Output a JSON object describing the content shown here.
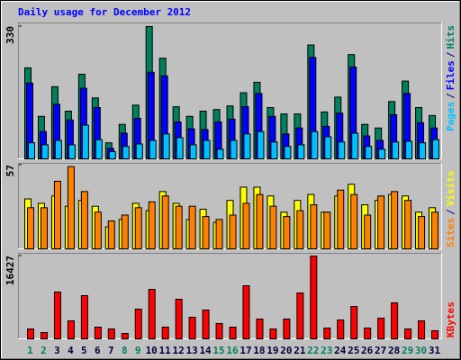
{
  "chart_data": [
    {
      "type": "bar",
      "title": "Daily usage for December 2012",
      "separator": "/",
      "ylim": [
        0,
        330
      ],
      "yticks": [
        330
      ],
      "series": [
        {
          "name": "Hits",
          "color": "#00805c",
          "values": [
            227,
            106,
            180,
            119,
            211,
            152,
            40,
            86,
            134,
            330,
            251,
            130,
            106,
            119,
            123,
            132,
            165,
            191,
            128,
            112,
            112,
            284,
            117,
            154,
            260,
            86,
            77,
            143,
            194,
            128,
            108
          ]
        },
        {
          "name": "Files",
          "color": "#0000ff",
          "values": [
            189,
            68,
            136,
            97,
            176,
            128,
            26,
            64,
            101,
            216,
            207,
            92,
            75,
            73,
            92,
            99,
            130,
            163,
            106,
            62,
            77,
            253,
            81,
            114,
            229,
            57,
            46,
            110,
            163,
            90,
            77
          ]
        },
        {
          "name": "Pages",
          "color": "#00c0ff",
          "values": [
            40,
            35,
            46,
            35,
            84,
            48,
            18,
            31,
            37,
            46,
            62,
            53,
            35,
            46,
            24,
            46,
            62,
            68,
            42,
            31,
            35,
            68,
            55,
            42,
            64,
            31,
            24,
            42,
            44,
            40,
            48
          ]
        }
      ]
    },
    {
      "type": "bar",
      "separator": "/",
      "ylim": [
        0,
        57
      ],
      "yticks": [
        57
      ],
      "series": [
        {
          "name": "Visits",
          "color": "#ffff00",
          "values": [
            34,
            31,
            36,
            29,
            33,
            29,
            15,
            20,
            31,
            26,
            39,
            31,
            20,
            27,
            18,
            33,
            42,
            42,
            36,
            25,
            33,
            37,
            25,
            36,
            44,
            30,
            33,
            37,
            36,
            25,
            28
          ]
        },
        {
          "name": "Sites",
          "color": "#ff8000",
          "values": [
            28,
            28,
            46,
            56,
            39,
            25,
            19,
            23,
            28,
            32,
            36,
            29,
            29,
            22,
            20,
            23,
            31,
            37,
            29,
            22,
            26,
            30,
            25,
            40,
            37,
            23,
            36,
            39,
            33,
            22,
            25
          ]
        }
      ]
    },
    {
      "type": "bar",
      "ylim": [
        0,
        16427
      ],
      "yticks": [
        16427
      ],
      "categories": [
        "1",
        "2",
        "3",
        "4",
        "5",
        "6",
        "7",
        "8",
        "9",
        "10",
        "11",
        "12",
        "13",
        "14",
        "15",
        "16",
        "17",
        "18",
        "19",
        "20",
        "21",
        "22",
        "23",
        "24",
        "25",
        "26",
        "27",
        "28",
        "29",
        "30",
        "31"
      ],
      "category_colors": [
        "#00805c",
        "#00805c",
        "#000040",
        "#000040",
        "#000040",
        "#000040",
        "#000040",
        "#00805c",
        "#00805c",
        "#000040",
        "#000040",
        "#000040",
        "#000040",
        "#000040",
        "#00805c",
        "#00805c",
        "#000040",
        "#000040",
        "#000040",
        "#000040",
        "#000040",
        "#00805c",
        "#00805c",
        "#000040",
        "#000040",
        "#000040",
        "#000040",
        "#000040",
        "#00805c",
        "#00805c",
        "#000040"
      ],
      "series": [
        {
          "name": "KBytes",
          "color": "#ff0000",
          "values": [
            1964,
            1250,
            9285,
            3571,
            8571,
            2321,
            1964,
            1071,
            5892,
            9820,
            2321,
            7856,
            4285,
            5714,
            3035,
            2321,
            10535,
            3928,
            1964,
            3928,
            9106,
            16427,
            2143,
            3750,
            6428,
            2143,
            4107,
            7142,
            1964,
            3571,
            1607
          ]
        }
      ]
    }
  ]
}
